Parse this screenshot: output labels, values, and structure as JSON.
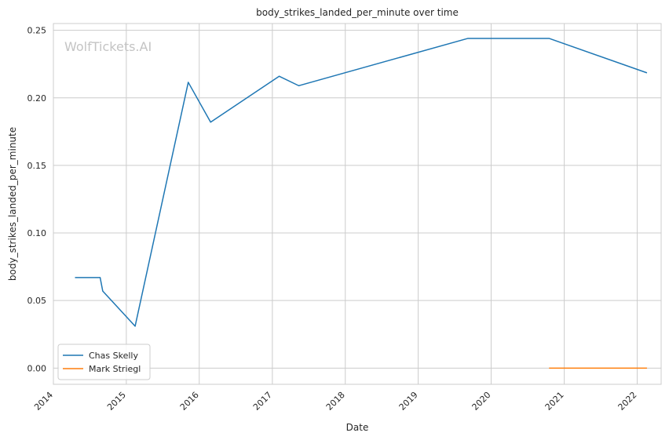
{
  "chart_data": {
    "type": "line",
    "title": "body_strikes_landed_per_minute over time",
    "xlabel": "Date",
    "ylabel": "body_strikes_landed_per_minute",
    "watermark": "WolfTickets.AI",
    "x_ticks": [
      "2014",
      "2015",
      "2016",
      "2017",
      "2018",
      "2019",
      "2020",
      "2021",
      "2022"
    ],
    "y_ticks": [
      "0.00",
      "0.05",
      "0.10",
      "0.15",
      "0.20",
      "0.25"
    ],
    "xlim": [
      "2014-01-01",
      "2022-05-01"
    ],
    "ylim": [
      -0.012,
      0.255
    ],
    "grid": true,
    "legend_position": "lower-left",
    "series": [
      {
        "name": "Chas Skelly",
        "color": "#1f77b4",
        "points": [
          {
            "date": "2014-04-19",
            "value": 0.067
          },
          {
            "date": "2014-08-23",
            "value": 0.067
          },
          {
            "date": "2014-09-05",
            "value": 0.057
          },
          {
            "date": "2015-02-14",
            "value": 0.031
          },
          {
            "date": "2015-11-07",
            "value": 0.2115
          },
          {
            "date": "2016-02-27",
            "value": 0.182
          },
          {
            "date": "2017-02-04",
            "value": 0.216
          },
          {
            "date": "2017-05-13",
            "value": 0.209
          },
          {
            "date": "2019-09-07",
            "value": 0.244
          },
          {
            "date": "2020-10-17",
            "value": 0.244
          },
          {
            "date": "2022-02-19",
            "value": 0.2185
          }
        ]
      },
      {
        "name": "Mark Striegl",
        "color": "#ff7f0e",
        "points": [
          {
            "date": "2020-10-17",
            "value": 0.0
          },
          {
            "date": "2022-02-19",
            "value": 0.0
          }
        ]
      }
    ]
  }
}
